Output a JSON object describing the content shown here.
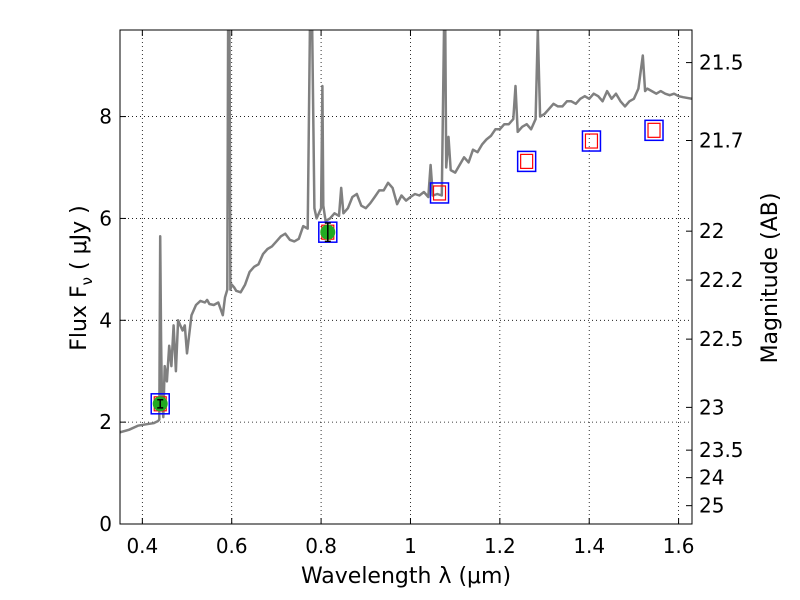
{
  "chart_data": {
    "type": "line",
    "xlabel": "Wavelength  λ (μm)",
    "ylabel": "Flux  F",
    "ylabel_sub": "ν",
    "ylabel_unit": "  ( μJy )",
    "y2label": "Magnitude (AB)",
    "xlim": [
      0.35,
      1.63
    ],
    "ylim": [
      0,
      9.7
    ],
    "x_ticks": [
      0.4,
      0.6,
      0.8,
      1.0,
      1.2,
      1.4,
      1.6
    ],
    "x_tick_labels": [
      "0.4",
      "0.6",
      "0.8",
      "1",
      "1.2",
      "1.4",
      "1.6"
    ],
    "y_ticks": [
      0,
      2,
      4,
      6,
      8
    ],
    "y_tick_labels": [
      "0",
      "2",
      "4",
      "6",
      "8"
    ],
    "y2_ticks": [
      {
        "label": "21.5",
        "flux": 9.06
      },
      {
        "label": "21.7",
        "flux": 7.53
      },
      {
        "label": "22",
        "flux": 5.75
      },
      {
        "label": "22.2",
        "flux": 4.79
      },
      {
        "label": "22.5",
        "flux": 3.63
      },
      {
        "label": "23",
        "flux": 2.29
      },
      {
        "label": "23.5",
        "flux": 1.45
      },
      {
        "label": "24",
        "flux": 0.91
      },
      {
        "label": "25",
        "flux": 0.36
      }
    ],
    "grid": true,
    "colors": {
      "model": "#808080",
      "box_outer": "#0000ff",
      "box_inner": "#ff0000",
      "detection": "#22aa22",
      "grid": "#000000"
    },
    "series": [
      {
        "name": "model spectrum",
        "style": "line",
        "x": [
          0.35,
          0.37,
          0.39,
          0.41,
          0.425,
          0.43,
          0.435,
          0.438,
          0.44,
          0.442,
          0.444,
          0.447,
          0.45,
          0.455,
          0.46,
          0.465,
          0.47,
          0.475,
          0.48,
          0.485,
          0.49,
          0.495,
          0.5,
          0.51,
          0.52,
          0.53,
          0.54,
          0.545,
          0.55,
          0.56,
          0.57,
          0.58,
          0.585,
          0.59,
          0.592,
          0.595,
          0.597,
          0.6,
          0.605,
          0.61,
          0.62,
          0.63,
          0.64,
          0.65,
          0.66,
          0.67,
          0.68,
          0.69,
          0.7,
          0.71,
          0.72,
          0.73,
          0.74,
          0.75,
          0.76,
          0.77,
          0.775,
          0.78,
          0.785,
          0.79,
          0.795,
          0.8,
          0.803,
          0.805,
          0.81,
          0.82,
          0.83,
          0.84,
          0.84,
          0.845,
          0.85,
          0.86,
          0.87,
          0.88,
          0.89,
          0.9,
          0.91,
          0.92,
          0.93,
          0.94,
          0.95,
          0.96,
          0.97,
          0.98,
          0.99,
          1.0,
          1.01,
          1.02,
          1.03,
          1.04,
          1.045,
          1.05,
          1.06,
          1.07,
          1.075,
          1.078,
          1.08,
          1.085,
          1.09,
          1.1,
          1.11,
          1.12,
          1.13,
          1.14,
          1.15,
          1.16,
          1.17,
          1.18,
          1.19,
          1.2,
          1.21,
          1.22,
          1.23,
          1.235,
          1.24,
          1.25,
          1.26,
          1.27,
          1.28,
          1.285,
          1.29,
          1.3,
          1.31,
          1.32,
          1.33,
          1.34,
          1.35,
          1.36,
          1.37,
          1.38,
          1.39,
          1.4,
          1.41,
          1.42,
          1.43,
          1.44,
          1.45,
          1.46,
          1.47,
          1.48,
          1.49,
          1.5,
          1.51,
          1.52,
          1.525,
          1.53,
          1.54,
          1.55,
          1.56,
          1.57,
          1.58,
          1.59,
          1.6,
          1.61,
          1.63
        ],
        "y": [
          1.8,
          1.85,
          1.93,
          1.96,
          1.98,
          2.0,
          2.02,
          2.05,
          5.65,
          3.6,
          2.4,
          2.1,
          3.1,
          2.8,
          3.5,
          3.1,
          3.9,
          3.0,
          4.0,
          3.9,
          3.8,
          3.9,
          3.35,
          4.1,
          4.3,
          4.38,
          4.35,
          4.4,
          4.32,
          4.3,
          4.35,
          4.1,
          4.45,
          4.6,
          9.7,
          9.7,
          4.6,
          4.7,
          4.65,
          4.58,
          4.55,
          4.7,
          4.95,
          5.05,
          5.1,
          5.3,
          5.4,
          5.45,
          5.55,
          5.65,
          5.7,
          5.58,
          5.55,
          5.6,
          5.85,
          5.8,
          9.7,
          9.7,
          6.2,
          6.0,
          6.1,
          6.2,
          8.6,
          6.25,
          5.95,
          6.0,
          6.1,
          6.05,
          6.05,
          6.6,
          6.1,
          6.2,
          6.42,
          6.48,
          6.25,
          6.2,
          6.3,
          6.42,
          6.55,
          6.55,
          6.7,
          6.6,
          6.28,
          6.45,
          6.35,
          6.42,
          6.48,
          6.45,
          6.52,
          6.42,
          7.05,
          6.45,
          6.48,
          6.45,
          9.7,
          9.7,
          7.0,
          7.6,
          6.95,
          6.9,
          7.05,
          7.2,
          7.1,
          7.35,
          7.3,
          7.45,
          7.55,
          7.62,
          7.75,
          7.75,
          7.85,
          7.85,
          7.95,
          8.6,
          7.7,
          7.8,
          7.85,
          7.75,
          7.95,
          9.7,
          8.0,
          8.05,
          8.15,
          8.25,
          8.2,
          8.2,
          8.3,
          8.3,
          8.25,
          8.35,
          8.4,
          8.35,
          8.45,
          8.4,
          8.3,
          8.5,
          8.35,
          8.45,
          8.3,
          8.2,
          8.3,
          8.35,
          8.55,
          9.2,
          8.5,
          8.55,
          8.5,
          8.45,
          8.5,
          8.45,
          8.42,
          8.45,
          8.4,
          8.38,
          8.35
        ]
      },
      {
        "name": "synthetic photometry",
        "style": "box",
        "x": [
          0.44,
          0.815,
          1.065,
          1.26,
          1.405,
          1.545
        ],
        "y": [
          2.36,
          5.73,
          6.5,
          7.12,
          7.52,
          7.73
        ]
      },
      {
        "name": "observed photometry",
        "style": "marker",
        "x": [
          0.44,
          0.815
        ],
        "y": [
          2.36,
          5.73
        ],
        "yerr": [
          0.08,
          0.18
        ]
      }
    ]
  }
}
